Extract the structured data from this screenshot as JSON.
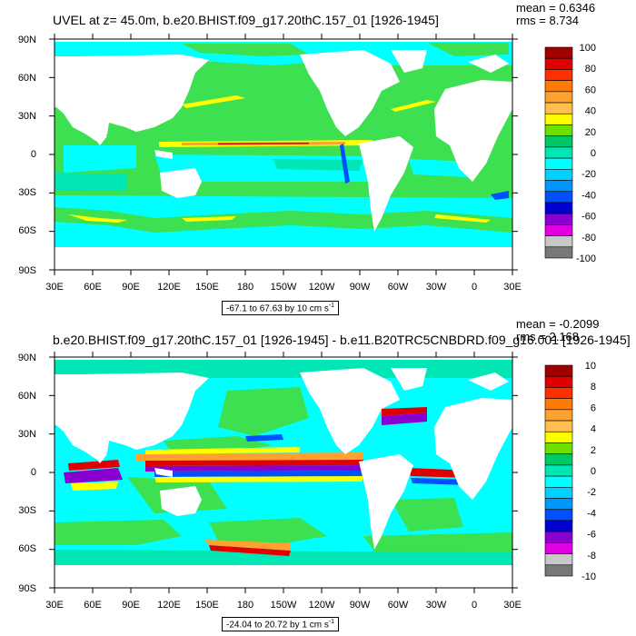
{
  "panels": [
    {
      "title": "UVEL at z=  45.0m, b.e20.BHIST.f09_g17.20thC.157_01 [1926-1945]",
      "mean": "mean = 0.6346",
      "rms": "rms = 8.734",
      "range": "-67.1 to 67.63 by 10 cm s",
      "range_exp": "-1",
      "colorbar": {
        "labels": [
          "100",
          "80",
          "60",
          "40",
          "20",
          "0",
          "-20",
          "-40",
          "-60",
          "-80",
          "-100"
        ],
        "colors": [
          "#a00000",
          "#e00000",
          "#ff3000",
          "#ff7a00",
          "#ffa030",
          "#ffc050",
          "#ffff00",
          "#6ee000",
          "#00c864",
          "#00e6b4",
          "#00ffff",
          "#00d2ff",
          "#0096ff",
          "#0050ff",
          "#0000d0",
          "#8a00d0",
          "#e000e0",
          "#c8c8c8",
          "#787878"
        ]
      }
    },
    {
      "title": "b.e20.BHIST.f09_g17.20thC.157_01 [1926-1945] - b.e11.B20TRC5CNBDRD.f09_g16.001 [1926-1945]",
      "mean": "mean = -0.2099",
      "rms": "rms = 2.168",
      "range": "-24.04 to 20.72 by 1 cm s",
      "range_exp": "-1",
      "colorbar": {
        "labels": [
          "10",
          "8",
          "6",
          "4",
          "2",
          "0",
          "-2",
          "-4",
          "-6",
          "-8",
          "-10"
        ],
        "colors": [
          "#a00000",
          "#e00000",
          "#ff3000",
          "#ff7a00",
          "#ffa030",
          "#ffc050",
          "#ffff00",
          "#6ee000",
          "#00c864",
          "#00e6b4",
          "#00ffff",
          "#00d2ff",
          "#0096ff",
          "#0050ff",
          "#0000d0",
          "#8a00d0",
          "#e000e0",
          "#c8c8c8",
          "#787878"
        ]
      }
    }
  ],
  "axes": {
    "lat_labels": [
      "90N",
      "60N",
      "30N",
      "0",
      "30S",
      "60S",
      "90S"
    ],
    "lon_labels": [
      "30E",
      "60E",
      "90E",
      "120E",
      "150E",
      "180",
      "150W",
      "120W",
      "90W",
      "60W",
      "30W",
      "0",
      "30E"
    ]
  },
  "palette": {
    "ocean_base": "#3ce050",
    "ocean_cyan": "#00ffff",
    "ocean_teal": "#00e6b4",
    "yellow": "#ffff00",
    "orange": "#ffa030",
    "red": "#e00000",
    "blue": "#0050ff",
    "purple": "#8a00d0",
    "land": "#ffffff"
  }
}
